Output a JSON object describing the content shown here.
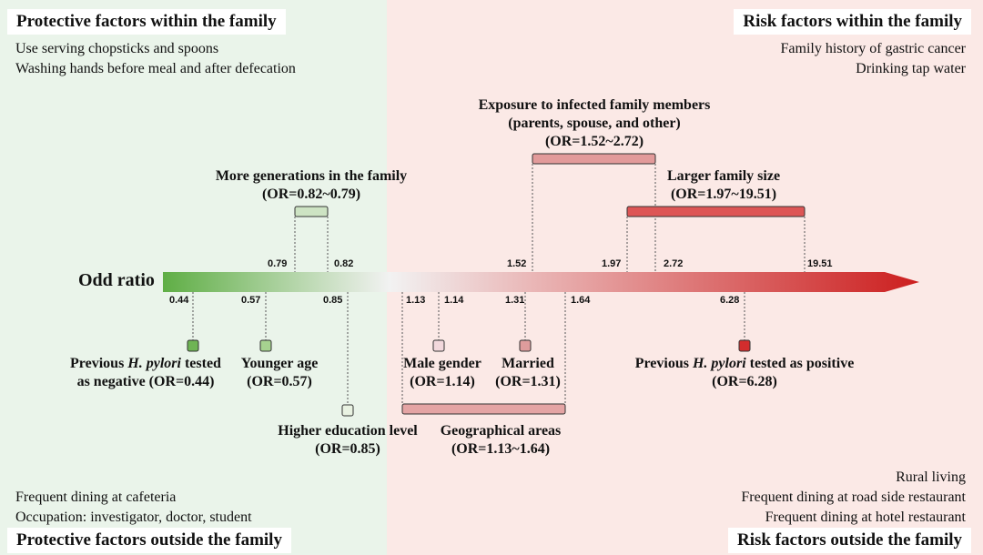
{
  "corners": {
    "top_left_title": "Protective factors within the family",
    "top_left_items": [
      "Use serving chopsticks and spoons",
      "Washing hands before meal and after defecation"
    ],
    "top_right_title": "Risk factors within the family",
    "top_right_items": [
      "Family history of gastric cancer",
      "Drinking tap water"
    ],
    "bottom_left_title": "Protective factors outside the family",
    "bottom_left_items": [
      "Frequent dining at cafeteria",
      "Occupation: investigator, doctor, student"
    ],
    "bottom_right_title": "Risk factors outside the family",
    "bottom_right_items": [
      "Rural living",
      "Frequent dining at road side restaurant",
      "Frequent dining at hotel restaurant"
    ]
  },
  "axis": {
    "title": "Odd ratio",
    "ticks_above": [
      "0.79",
      "0.82",
      "1.52",
      "1.97",
      "2.72",
      "19.51"
    ],
    "ticks_below": [
      "0.44",
      "0.57",
      "0.85",
      "1.13",
      "1.14",
      "1.31",
      "1.64",
      "6.28"
    ]
  },
  "factors_above": {
    "generations": {
      "line1": "More generations in the family",
      "line2": "(OR=0.82~0.79)"
    },
    "exposure": {
      "line1": "Exposure to infected family members",
      "line2": "(parents, spouse, and other)",
      "line3": "(OR=1.52~2.72)"
    },
    "family_size": {
      "line1": "Larger family size",
      "line2": "(OR=1.97~19.51)"
    }
  },
  "factors_below": {
    "hp_negative": {
      "line1a": "Previous ",
      "line1b": "H. pylori",
      "line1c": " tested",
      "line2": "as negative  (OR=0.44)"
    },
    "younger_age": {
      "line1": "Younger age",
      "line2": "(OR=0.57)"
    },
    "education": {
      "line1": "Higher education level",
      "line2": "(OR=0.85)"
    },
    "male_gender": {
      "line1": "Male gender",
      "line2": "(OR=1.14)"
    },
    "married": {
      "line1": "Married",
      "line2": "(OR=1.31)"
    },
    "geographical": {
      "line1": "Geographical areas",
      "line2": "(OR=1.13~1.64)"
    },
    "hp_positive": {
      "line1a": "Previous ",
      "line1b": "H. pylori",
      "line1c": " tested as positive",
      "line2": "(OR=6.28)"
    }
  },
  "colors": {
    "protective_bg": "#eaf4ea",
    "risk_bg": "#fbe9e6",
    "green_strong": "#5fae45",
    "red_strong": "#d22d2d",
    "red_bar": "#dd5555",
    "pink_bar": "#e29a9a"
  }
}
